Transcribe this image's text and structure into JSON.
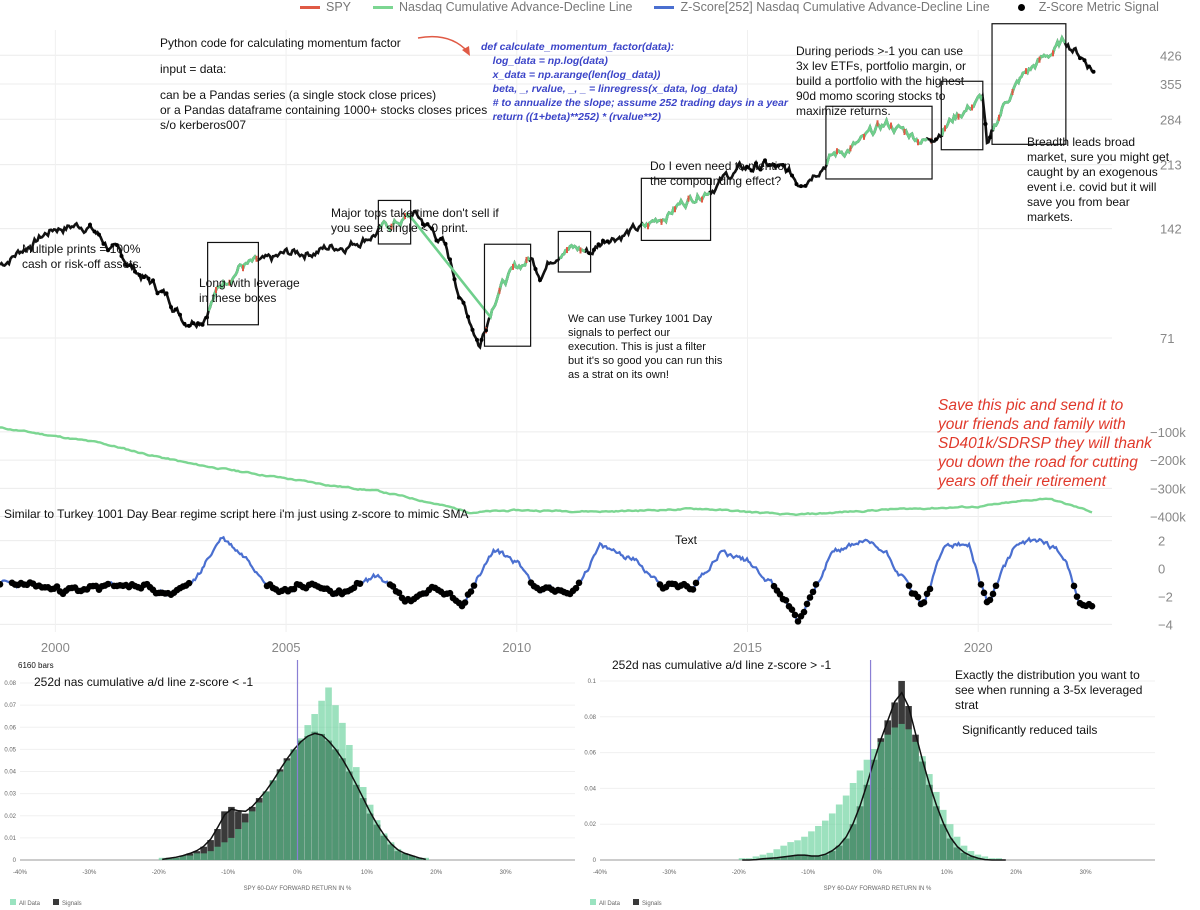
{
  "legend": [
    {
      "label": "SPY",
      "color": "#e05a45"
    },
    {
      "label": "Nasdaq Cumulative Advance-Decline Line",
      "color": "#7cd692"
    },
    {
      "label": "Z-Score[252] Nasdaq Cumulative Advance-Decline Line",
      "color": "#4a6fd0"
    },
    {
      "label": "Z-Score Metric Signal",
      "color": "#000000"
    }
  ],
  "annotations": {
    "python_title": "Python code for calculating momentum factor",
    "input_line": "input = data:",
    "input_desc": "can be a Pandas series (a single stock close prices)\nor a Pandas dataframe containing 1000+ stocks closes prices\ns/o kerberos007",
    "code": "def calculate_momentum_factor(data):\n    log_data = np.log(data)\n    x_data = np.arange(len(log_data))\n    beta, _, rvalue, _, _ = linregress(x_data, log_data)\n    # to annualize the slope; assume 252 trading days in a year\n    return ((1+beta)**252) * (rvalue**2)",
    "multiple_prints": "Multiple prints = 100%\ncash or risk-off assets.",
    "long_leverage": "Long with leverage\nin these boxes",
    "major_tops": "Major tops take time don't sell if\nyou see a single < 0 print.",
    "turkey_exec": "We can use Turkey 1001 Day\nsignals to perfect our\nexecution. This is just a filter\nbut it's so good you can run this\nas a strat on its own!",
    "compounding": "Do I even need to mention\nthe compounding effect?",
    "periods": "During periods >-1 you can use\n3x lev ETFs, portfolio margin, or\nbuild a portfolio with the highest\n90d momo scoring stocks to\nmaximize returns.",
    "breadth": "Breadth leads broad\nmarket, sure you might get\ncaught by an exogenous\nevent i.e. covid but it will\nsave you from bear\nmarkets.",
    "save_pic": "Save this pic and send it to\nyour friends and family with\nSD401k/SDRSP they will thank\nyou down the road for cutting\nyears off their retirement",
    "similar": "Similar to Turkey 1001 Day Bear regime script here i'm just using z-score to mimic SMA",
    "text_marker": "Text",
    "bars": "6160 bars",
    "exactly": "Exactly the distribution you want to\nsee when running a 3-5x leveraged\nstrat",
    "reduced": "Significantly reduced tails"
  },
  "chart_data": [
    {
      "type": "line",
      "panel": "price",
      "series": [
        {
          "name": "SPY"
        }
      ],
      "scale": "log",
      "ylim": [
        45,
        500
      ],
      "y_ticks": [
        "426",
        "355",
        "284",
        "213",
        "142",
        "71"
      ],
      "y_tick_values": [
        426,
        355,
        284,
        213,
        142,
        71
      ],
      "x_ticks": [
        "2000",
        "2005",
        "2010",
        "2015",
        "2020"
      ],
      "xlim": [
        1998.8,
        2022.9
      ],
      "x": [
        1998.8,
        1999.5,
        2000.0,
        2000.7,
        2001.2,
        2001.7,
        2002.5,
        2002.8,
        2003.2,
        2003.6,
        2004.0,
        2004.6,
        2005.0,
        2005.8,
        2006.4,
        2007.0,
        2007.8,
        2008.4,
        2008.8,
        2009.2,
        2009.6,
        2010.0,
        2010.3,
        2010.5,
        2011.0,
        2011.6,
        2012.0,
        2012.8,
        2013.5,
        2014.0,
        2014.8,
        2015.4,
        2015.9,
        2016.1,
        2016.8,
        2017.5,
        2018.0,
        2018.9,
        2019.5,
        2020.1,
        2020.2,
        2020.6,
        2021.0,
        2021.5,
        2021.9,
        2022.2,
        2022.5
      ],
      "y": [
        113,
        130,
        143,
        146,
        125,
        110,
        90,
        80,
        82,
        100,
        113,
        113,
        120,
        125,
        130,
        140,
        155,
        130,
        90,
        68,
        98,
        110,
        118,
        108,
        128,
        122,
        136,
        142,
        165,
        180,
        205,
        212,
        200,
        190,
        225,
        245,
        275,
        248,
        290,
        325,
        230,
        320,
        375,
        425,
        465,
        430,
        390
      ],
      "signal_ranges": [
        [
          2000.7,
          2003.3
        ],
        [
          2007.9,
          2009.4
        ],
        [
          2010.4,
          2010.6
        ],
        [
          2011.5,
          2012.0
        ],
        [
          2014.9,
          2016.3
        ],
        [
          2018.9,
          2019.1
        ],
        [
          2020.1,
          2020.3
        ],
        [
          2022.2,
          2022.5
        ]
      ],
      "boxes": [
        [
          2003.3,
          2004.4
        ],
        [
          2007.0,
          2007.7
        ],
        [
          2009.3,
          2010.3
        ],
        [
          2010.9,
          2011.6
        ],
        [
          2012.7,
          2014.2
        ],
        [
          2016.7,
          2019.0
        ],
        [
          2019.2,
          2020.1
        ],
        [
          2020.3,
          2021.9
        ]
      ]
    },
    {
      "type": "line",
      "panel": "ad_line",
      "series": [
        {
          "name": "Nasdaq Cumulative Advance-Decline Line"
        }
      ],
      "y_ticks": [
        "−100k",
        "−200k",
        "−300k",
        "−400k"
      ],
      "y_tick_values": [
        -100000,
        -200000,
        -300000,
        -400000
      ],
      "ylim": [
        -430000,
        -40000
      ],
      "x": [
        1998.8,
        2000.0,
        2001.0,
        2002.0,
        2003.0,
        2004.0,
        2005.0,
        2006.0,
        2007.0,
        2008.0,
        2009.0,
        2010.0,
        2012.0,
        2014.0,
        2016.0,
        2018.0,
        2020.0,
        2021.5,
        2022.5
      ],
      "y": [
        -85000,
        -115000,
        -140000,
        -180000,
        -215000,
        -240000,
        -265000,
        -290000,
        -310000,
        -345000,
        -385000,
        -378000,
        -382000,
        -372000,
        -395000,
        -375000,
        -365000,
        -335000,
        -385000
      ]
    },
    {
      "type": "line",
      "panel": "zscore",
      "series": [
        {
          "name": "Z-Score[252] Nasdaq Cumulative Advance-Decline Line"
        }
      ],
      "y_ticks": [
        "2",
        "0",
        "−2",
        "−4"
      ],
      "y_tick_values": [
        2,
        0,
        -2,
        -4
      ],
      "ylim": [
        -4.4,
        2.9
      ],
      "x": [
        1998.8,
        1999.5,
        2000.5,
        2001.5,
        2002.5,
        2003.0,
        2003.6,
        2004.2,
        2004.8,
        2005.5,
        2006.3,
        2007.0,
        2007.6,
        2008.2,
        2008.8,
        2009.5,
        2010.0,
        2010.5,
        2011.2,
        2011.8,
        2012.5,
        2013.2,
        2013.8,
        2014.4,
        2015.0,
        2015.6,
        2016.1,
        2016.8,
        2017.5,
        2018.0,
        2018.8,
        2019.3,
        2019.8,
        2020.2,
        2020.8,
        2021.4,
        2021.9,
        2022.2,
        2022.5
      ],
      "y": [
        -1.0,
        -1.3,
        -1.6,
        -1.1,
        -1.8,
        -1.0,
        2.3,
        0.6,
        -1.5,
        -1.2,
        -1.8,
        -0.5,
        -2.4,
        -1.4,
        -2.5,
        1.3,
        0.5,
        -1.5,
        -1.7,
        1.5,
        0.8,
        -1.2,
        -1.3,
        1.2,
        0.6,
        -1.2,
        -3.8,
        1.0,
        2.0,
        1.2,
        -2.7,
        1.8,
        1.6,
        -2.6,
        1.6,
        2.1,
        0.8,
        -2.5,
        -2.9
      ],
      "signal_threshold": -1
    },
    {
      "type": "bar",
      "panel": "histogram_left",
      "title": "252d nas cumulative a/d line z-score < -1",
      "xlabel": "SPY 60-DAY FORWARD RETURN IN %",
      "x_ticks": [
        "-40%",
        "-30%",
        "-20%",
        "-10%",
        "0%",
        "10%",
        "20%",
        "30%"
      ],
      "xlim": [
        -40,
        40
      ],
      "y_ticks": [
        "0",
        "0.01",
        "0.02",
        "0.03",
        "0.04",
        "0.05",
        "0.06",
        "0.07",
        "0.08"
      ],
      "ylim": [
        0,
        0.085
      ],
      "legend_items": [
        "All Data",
        "Signals"
      ],
      "bin_width": 1,
      "series": [
        {
          "name": "All Data",
          "bins_start": -20,
          "values": [
            0.001,
            0.001,
            0.001,
            0.002,
            0.002,
            0.003,
            0.003,
            0.004,
            0.006,
            0.008,
            0.01,
            0.014,
            0.017,
            0.022,
            0.026,
            0.031,
            0.036,
            0.04,
            0.045,
            0.05,
            0.055,
            0.061,
            0.066,
            0.072,
            0.078,
            0.07,
            0.062,
            0.052,
            0.042,
            0.033,
            0.025,
            0.018,
            0.012,
            0.008,
            0.005,
            0.003,
            0.002,
            0.001,
            0.001
          ]
        },
        {
          "name": "Signals",
          "bins_start": -20,
          "values": [
            0.0,
            0.001,
            0.001,
            0.002,
            0.003,
            0.004,
            0.006,
            0.009,
            0.014,
            0.022,
            0.024,
            0.022,
            0.021,
            0.024,
            0.028,
            0.031,
            0.036,
            0.041,
            0.046,
            0.05,
            0.054,
            0.056,
            0.058,
            0.057,
            0.054,
            0.05,
            0.046,
            0.04,
            0.034,
            0.028,
            0.021,
            0.016,
            0.011,
            0.007,
            0.004,
            0.003,
            0.002,
            0.001,
            0.0
          ]
        }
      ],
      "marker_x": 0
    },
    {
      "type": "bar",
      "panel": "histogram_right",
      "title": "252d nas cumulative a/d line z-score > -1",
      "xlabel": "SPY 60-DAY FORWARD RETURN IN %",
      "x_ticks": [
        "-40%",
        "-30%",
        "-20%",
        "-10%",
        "0%",
        "10%",
        "20%",
        "30%"
      ],
      "xlim": [
        -40,
        40
      ],
      "y_ticks": [
        "0",
        "0.02",
        "0.04",
        "0.06",
        "0.08",
        "0.1"
      ],
      "ylim": [
        0,
        0.105
      ],
      "legend_items": [
        "All Data",
        "Signals"
      ],
      "bin_width": 1,
      "series": [
        {
          "name": "All Data",
          "bins_start": -20,
          "values": [
            0.001,
            0.001,
            0.002,
            0.003,
            0.004,
            0.006,
            0.008,
            0.01,
            0.011,
            0.013,
            0.016,
            0.019,
            0.022,
            0.026,
            0.031,
            0.036,
            0.043,
            0.05,
            0.056,
            0.062,
            0.066,
            0.07,
            0.074,
            0.076,
            0.073,
            0.066,
            0.058,
            0.048,
            0.038,
            0.028,
            0.02,
            0.013,
            0.008,
            0.005,
            0.003,
            0.002,
            0.001,
            0.001,
            0.0
          ]
        },
        {
          "name": "Signals",
          "bins_start": -20,
          "values": [
            0.0,
            0.0,
            0.0,
            0.001,
            0.001,
            0.001,
            0.002,
            0.002,
            0.003,
            0.003,
            0.002,
            0.002,
            0.003,
            0.005,
            0.008,
            0.012,
            0.02,
            0.03,
            0.042,
            0.056,
            0.068,
            0.078,
            0.088,
            0.1,
            0.086,
            0.07,
            0.055,
            0.042,
            0.03,
            0.02,
            0.012,
            0.007,
            0.004,
            0.002,
            0.001,
            0.0,
            0.0,
            0.0,
            0.0
          ]
        }
      ],
      "marker_x": -1
    }
  ]
}
